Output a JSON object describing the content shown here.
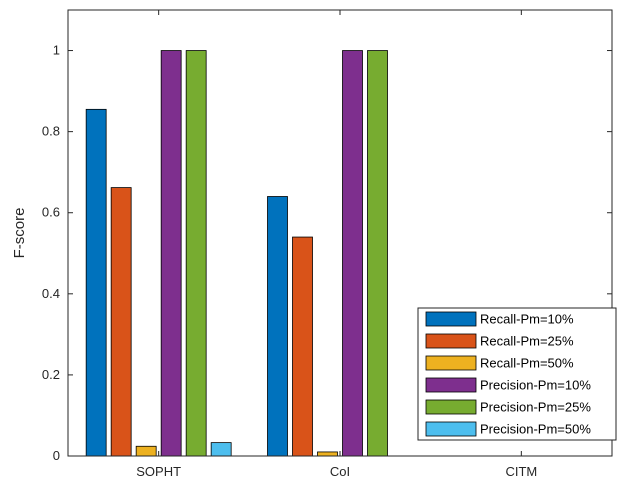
{
  "chart_data": {
    "type": "bar",
    "title": "",
    "xlabel": "",
    "ylabel": "F-score",
    "ylim": [
      0,
      1.1
    ],
    "yticks": [
      0,
      0.2,
      0.4,
      0.6,
      0.8,
      1
    ],
    "ytick_labels": [
      "0",
      "0.2",
      "0.4",
      "0.6",
      "0.8",
      "1"
    ],
    "categories": [
      "SOPHT",
      "CoI",
      "CITM"
    ],
    "grid": false,
    "legend_position": "bottom-right",
    "series": [
      {
        "name": "Recall-Pm=10%",
        "color": "#0072BD",
        "values": [
          0.855,
          0.64,
          0
        ]
      },
      {
        "name": "Recall-Pm=25%",
        "color": "#D95319",
        "values": [
          0.662,
          0.54,
          0
        ]
      },
      {
        "name": "Recall-Pm=50%",
        "color": "#EDB120",
        "values": [
          0.024,
          0.01,
          0
        ]
      },
      {
        "name": "Precision-Pm=10%",
        "color": "#7E2F8E",
        "values": [
          1.0,
          1.0,
          0
        ]
      },
      {
        "name": "Precision-Pm=25%",
        "color": "#77AC30",
        "values": [
          1.0,
          1.0,
          0
        ]
      },
      {
        "name": "Precision-Pm=50%",
        "color": "#4DBEEE",
        "values": [
          0.033,
          0,
          0
        ]
      }
    ]
  }
}
